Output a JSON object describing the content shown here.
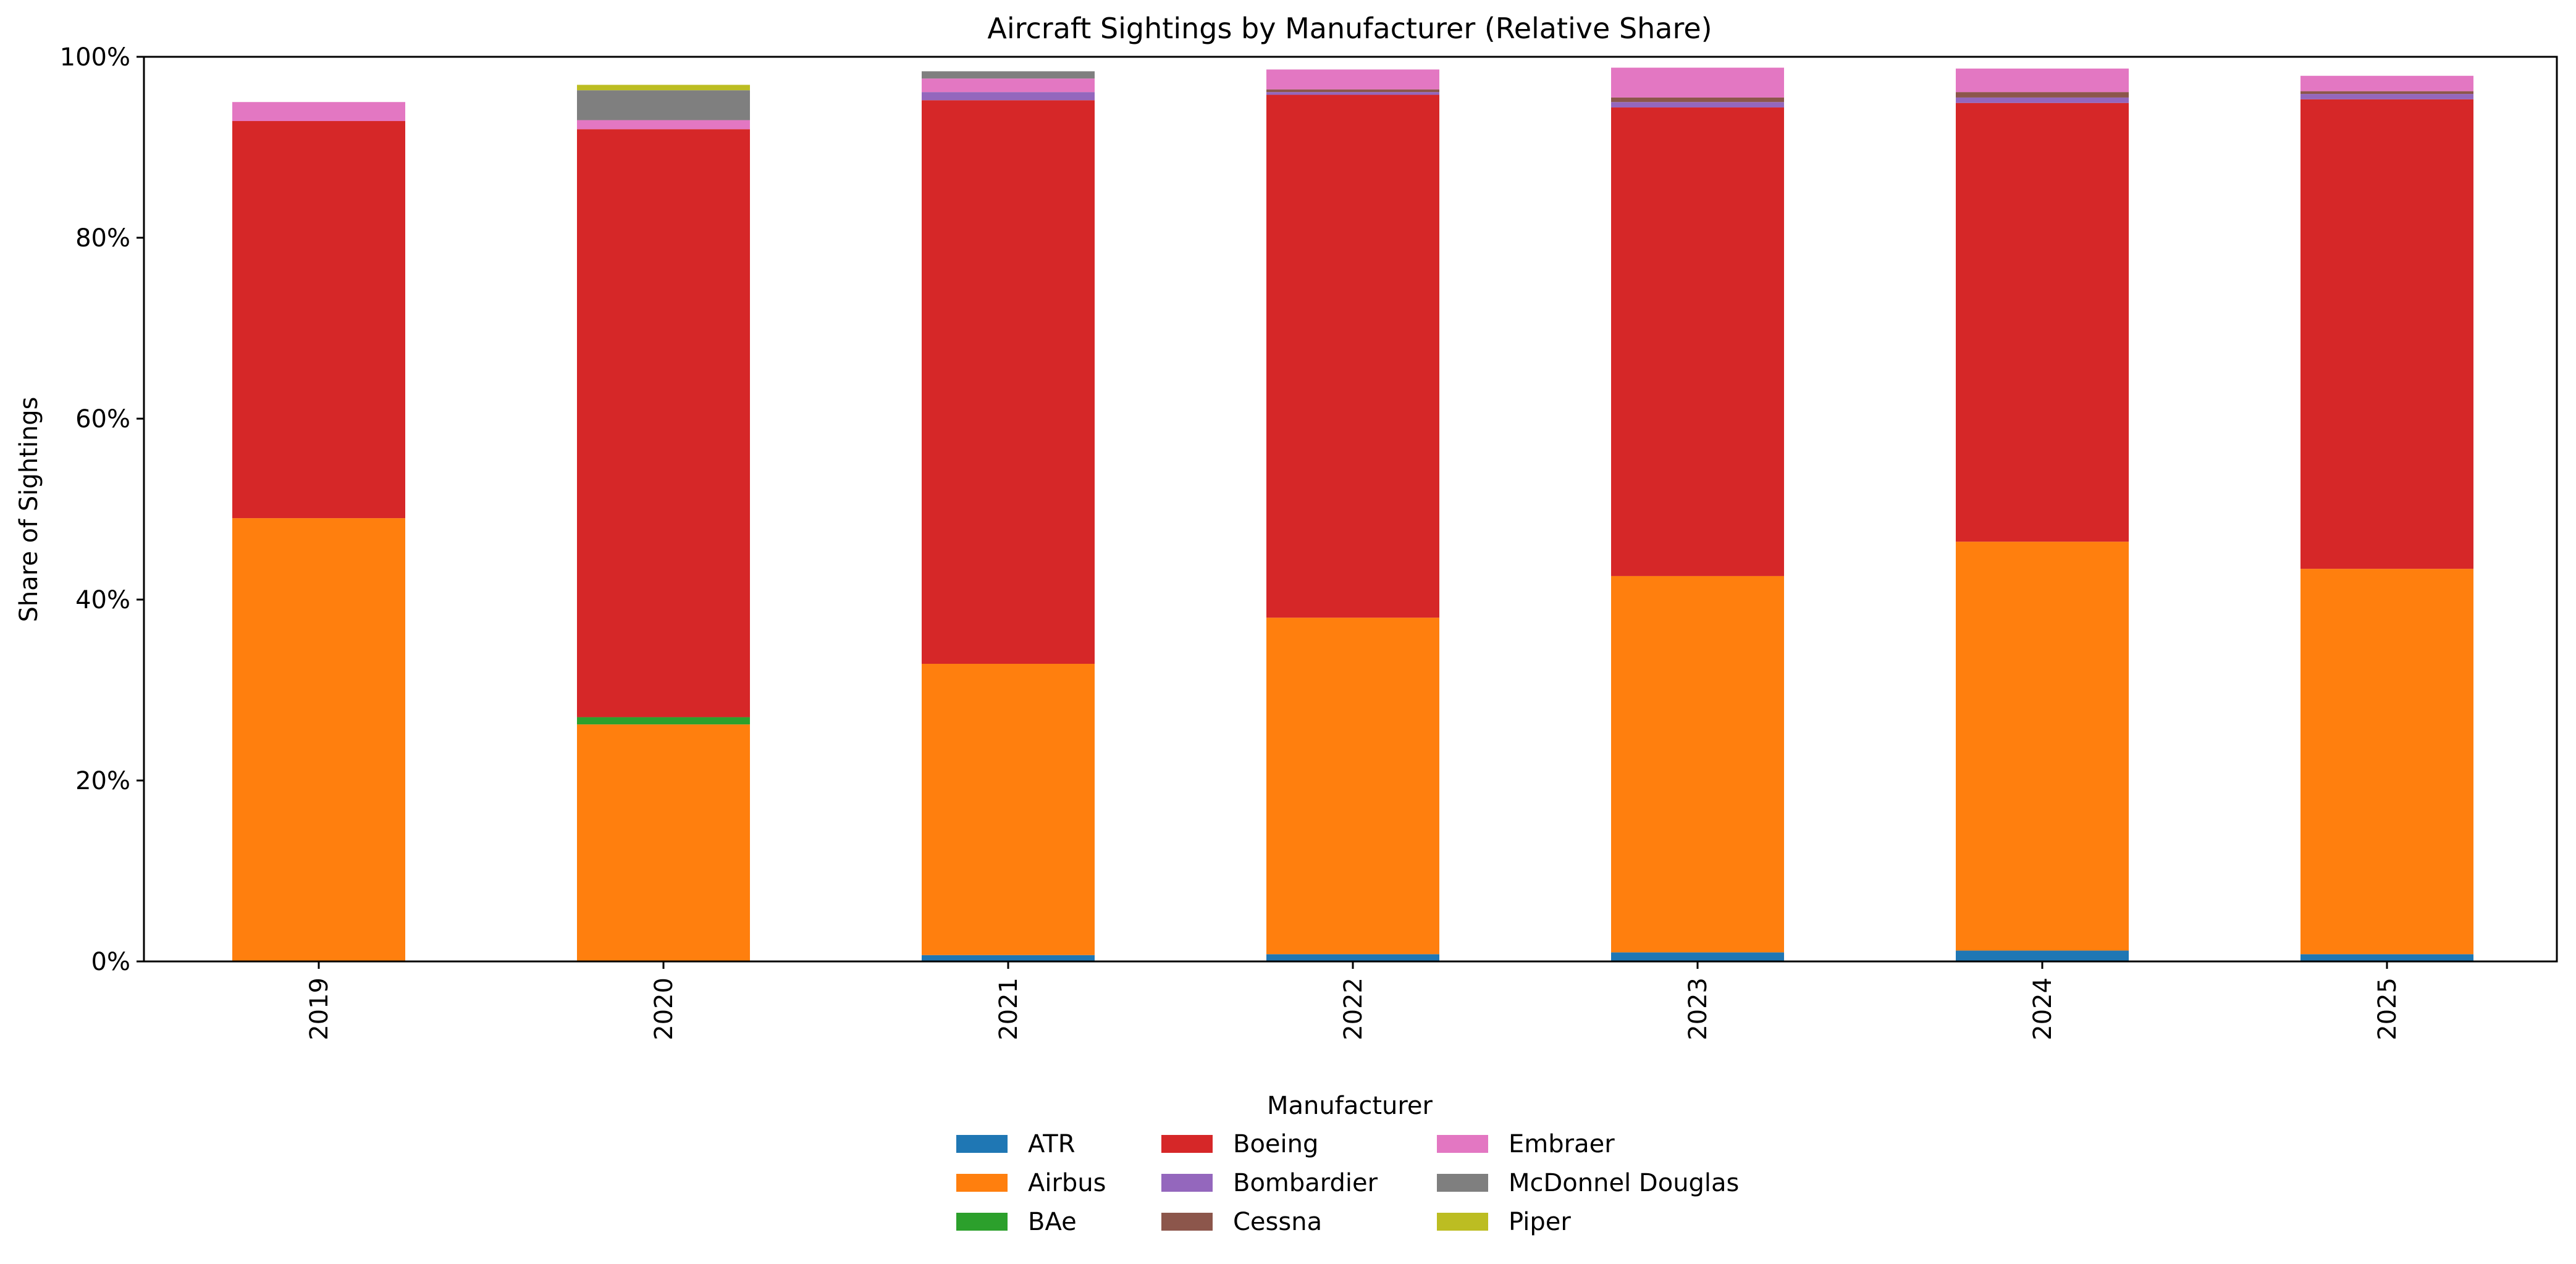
{
  "chart_data": {
    "type": "bar",
    "stacked": true,
    "title": "Aircraft Sightings by Manufacturer (Relative Share)",
    "xlabel": "",
    "ylabel": "Share of Sightings",
    "ylim": [
      0,
      100
    ],
    "y_ticks": [
      "0%",
      "20%",
      "40%",
      "60%",
      "80%",
      "100%"
    ],
    "grid": false,
    "legend": {
      "title": "Manufacturer",
      "placement": "bottom-center",
      "columns": 3
    },
    "categories": [
      "2019",
      "2020",
      "2021",
      "2022",
      "2023",
      "2024",
      "2025"
    ],
    "series": [
      {
        "name": "ATR",
        "color": "#1f77b4",
        "values": [
          0,
          0,
          0.7,
          0.8,
          1.0,
          1.2,
          0.8
        ]
      },
      {
        "name": "Airbus",
        "color": "#ff7f0e",
        "values": [
          49.0,
          26.2,
          32.2,
          37.2,
          41.6,
          45.2,
          42.6
        ]
      },
      {
        "name": "BAe",
        "color": "#2ca02c",
        "values": [
          0,
          0.8,
          0,
          0,
          0,
          0,
          0
        ]
      },
      {
        "name": "Boeing",
        "color": "#d62728",
        "values": [
          43.9,
          65.0,
          62.3,
          57.8,
          51.8,
          48.5,
          51.9
        ]
      },
      {
        "name": "Bombardier",
        "color": "#9467bd",
        "values": [
          0,
          0,
          0.9,
          0.3,
          0.6,
          0.6,
          0.6
        ]
      },
      {
        "name": "Cessna",
        "color": "#8c564b",
        "values": [
          0,
          0,
          0,
          0.3,
          0.5,
          0.6,
          0.3
        ]
      },
      {
        "name": "Embraer",
        "color": "#e377c2",
        "values": [
          2.1,
          1.0,
          1.5,
          2.2,
          3.3,
          2.6,
          1.7
        ]
      },
      {
        "name": "McDonnel Douglas",
        "color": "#7f7f7f",
        "values": [
          0,
          3.3,
          0.8,
          0,
          0,
          0,
          0
        ]
      },
      {
        "name": "Piper",
        "color": "#bcbd22",
        "values": [
          0,
          0.6,
          0,
          0,
          0,
          0,
          0
        ]
      }
    ]
  }
}
